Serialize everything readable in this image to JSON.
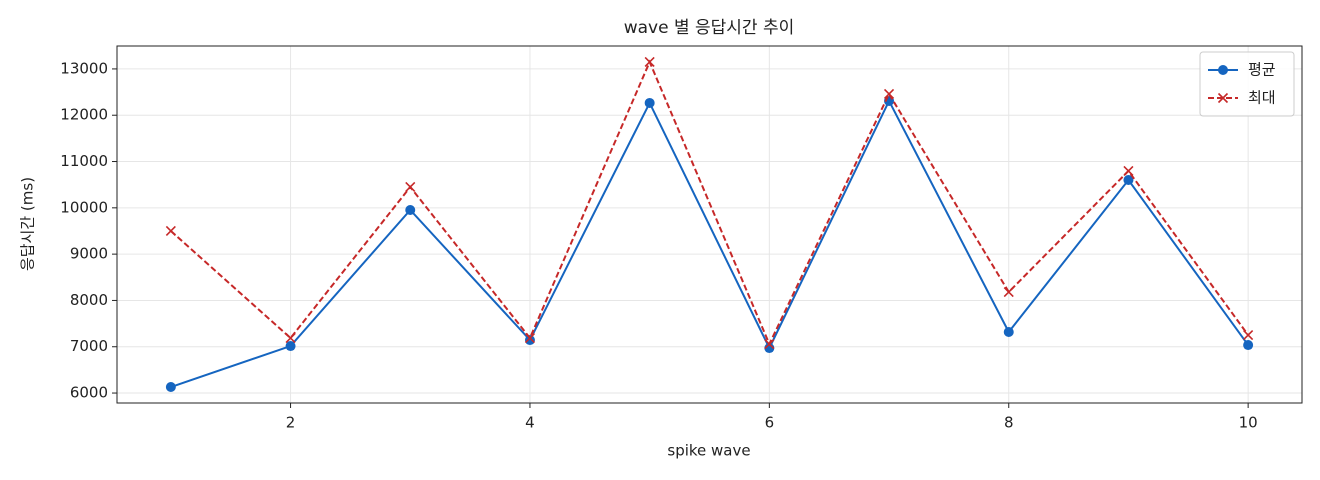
{
  "chart_data": {
    "type": "line",
    "title": "wave 별 응답시간 추이",
    "xlabel": "spike wave",
    "ylabel": "응답시간 (ms)",
    "x": [
      1,
      2,
      3,
      4,
      5,
      6,
      7,
      8,
      9,
      10
    ],
    "series": [
      {
        "name": "평균",
        "color": "#1565c0",
        "marker": "circle",
        "linestyle": "solid",
        "values": [
          6130,
          7015,
          9953,
          7145,
          12265,
          6972,
          12308,
          7318,
          10601,
          7037
        ]
      },
      {
        "name": "최대",
        "color": "#c62828",
        "marker": "x",
        "linestyle": "dashed",
        "values": [
          9500,
          7188,
          10450,
          7188,
          13150,
          7058,
          12460,
          8182,
          10796,
          7253
        ]
      }
    ],
    "xlim": [
      0.55,
      10.45
    ],
    "xticks": [
      2,
      4,
      6,
      8,
      10
    ],
    "ylim": [
      5785,
      13495
    ],
    "yticks": [
      6000,
      7000,
      8000,
      9000,
      10000,
      11000,
      12000,
      13000
    ],
    "grid": true,
    "legend": "upper right"
  }
}
